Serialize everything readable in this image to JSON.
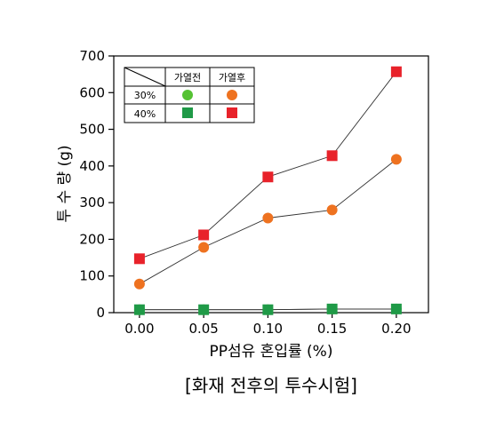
{
  "chart_data": {
    "type": "scatter",
    "xlabel": "PP섬유 혼입률 (%)",
    "ylabel": "투 수 량 (g)",
    "caption": "[화재 전후의 투수시험]",
    "xlim": [
      -0.02,
      0.225
    ],
    "ylim": [
      0,
      700
    ],
    "x": [
      0.0,
      0.05,
      0.1,
      0.15,
      0.2
    ],
    "x_tick_labels": [
      "0.00",
      "0.05",
      "0.10",
      "0.15",
      "0.20"
    ],
    "y_ticks": [
      0,
      100,
      200,
      300,
      400,
      500,
      600,
      700
    ],
    "y_tick_labels": [
      "0",
      "100",
      "200",
      "300",
      "400",
      "500",
      "600",
      "700"
    ],
    "grid": false,
    "legend_position": "top-left",
    "legend": {
      "columns": [
        "가열전",
        "가열후"
      ],
      "rows": [
        "30%",
        "40%"
      ]
    },
    "series": [
      {
        "row": "30%",
        "column": "가열전",
        "marker": "circle",
        "color": "#55c233",
        "values": [
          8,
          8,
          8,
          10,
          10
        ]
      },
      {
        "row": "40%",
        "column": "가열전",
        "marker": "square",
        "color": "#1f9a47",
        "values": [
          8,
          8,
          8,
          10,
          10
        ]
      },
      {
        "row": "30%",
        "column": "가열후",
        "marker": "circle",
        "color": "#ee7220",
        "values": [
          78,
          178,
          258,
          280,
          418
        ]
      },
      {
        "row": "40%",
        "column": "가열후",
        "marker": "square",
        "color": "#e8222a",
        "values": [
          147,
          212,
          370,
          428,
          657
        ]
      }
    ]
  }
}
